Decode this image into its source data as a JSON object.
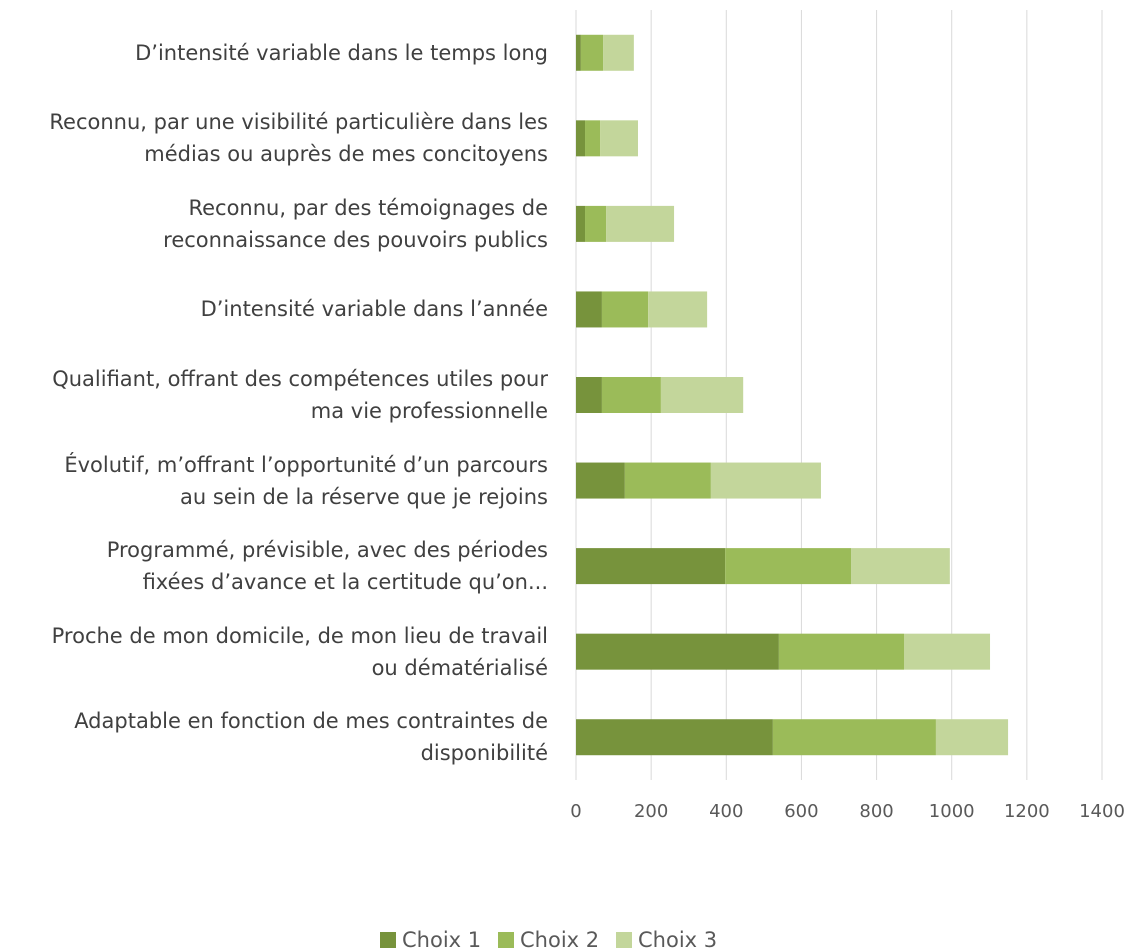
{
  "chart_data": {
    "type": "stacked-barh",
    "categories": [
      "D’intensité variable dans le temps long",
      "Reconnu, par une visibilité particulière dans les\nmédias ou auprès de mes concitoyens",
      "Reconnu, par des témoignages de\nreconnaissance des pouvoirs publics",
      "D’intensité variable dans l’année",
      "Qualifiant, offrant des compétences utiles pour\nma vie professionnelle",
      "Évolutif, m’offrant l’opportunité d’un parcours\nau sein de la réserve que je rejoins",
      "Programmé, prévisible, avec des périodes\nfixées d’avance et la certitude qu’on...",
      "Proche de mon domicile, de mon lieu de travail\nou dématérialisé",
      "Adaptable en fonction de mes contraintes de\ndisponibilité"
    ],
    "series": [
      {
        "name": "Choix 1",
        "color": "#77933c",
        "values": [
          13,
          24,
          24,
          69,
          69,
          130,
          397,
          540,
          524
        ]
      },
      {
        "name": "Choix 2",
        "color": "#9bbb59",
        "values": [
          59,
          40,
          56,
          123,
          157,
          229,
          335,
          333,
          434
        ]
      },
      {
        "name": "Choix 3",
        "color": "#c3d69b",
        "values": [
          82,
          101,
          181,
          157,
          219,
          293,
          263,
          229,
          192
        ]
      }
    ],
    "xlim": [
      0,
      1400
    ],
    "xticks": [
      0,
      200,
      400,
      600,
      800,
      1000,
      1200,
      1400
    ],
    "grid": true,
    "legend": "bottom"
  }
}
